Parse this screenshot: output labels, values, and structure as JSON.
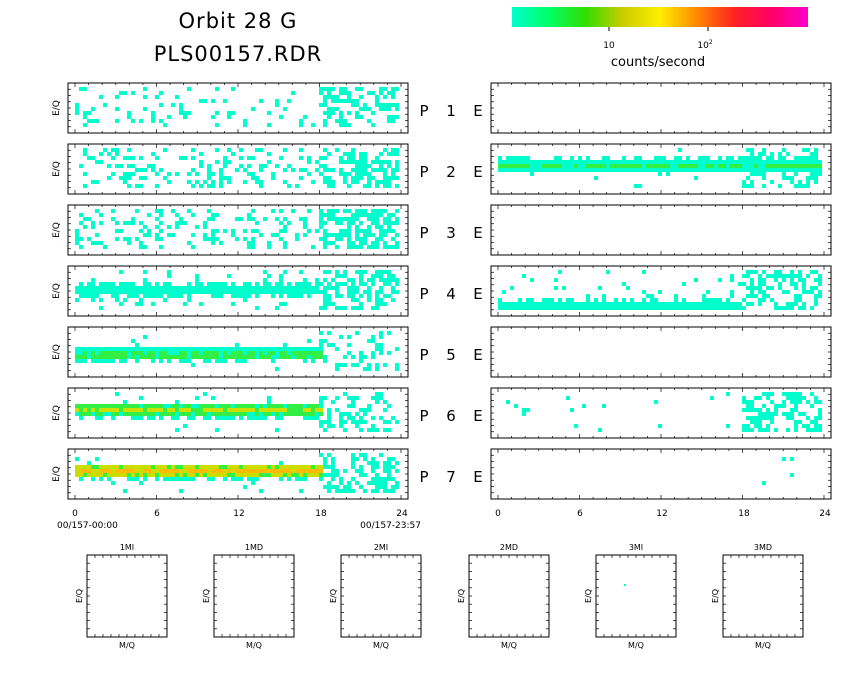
{
  "title": {
    "line1": "Orbit 28 G",
    "line2": "PLS00157.RDR"
  },
  "colorbar": {
    "stops": [
      "#00ffcc",
      "#00ff66",
      "#33dd00",
      "#cccc00",
      "#ffee00",
      "#ff8800",
      "#ff2222",
      "#ff0066",
      "#ff00cc"
    ],
    "tick1": "10",
    "tick2_base": "10",
    "tick2_exp": "2",
    "label": "counts/second"
  },
  "axis_labels": {
    "eq": "E/Q",
    "mq": "M/Q"
  },
  "time_axis": {
    "ticks": [
      "0",
      "6",
      "12",
      "18",
      "24"
    ],
    "start_label": "00/157-00:00",
    "end_label": "00/157-23:57"
  },
  "chart_data": {
    "type": "heatmap",
    "x_range": [
      0,
      24
    ],
    "channels": [
      {
        "p": "P",
        "n": "1",
        "e": "E",
        "left": {
          "density": 0.1,
          "late_density": 0.45,
          "band_y": null,
          "band_level": 0,
          "band_end": 18
        },
        "right": {
          "density": 0.0,
          "late_density": 0.0,
          "band_y": null,
          "band_level": 0,
          "band_end": 24
        }
      },
      {
        "p": "P",
        "n": "2",
        "e": "E",
        "left": {
          "density": 0.22,
          "late_density": 0.55,
          "band_y": null,
          "band_level": 0,
          "band_end": 18
        },
        "right": {
          "density": 0.02,
          "late_density": 0.35,
          "band_y": 0.38,
          "band_level": 1,
          "band_end": 24
        }
      },
      {
        "p": "P",
        "n": "3",
        "e": "E",
        "left": {
          "density": 0.25,
          "late_density": 0.6,
          "band_y": null,
          "band_level": 0,
          "band_end": 18
        },
        "right": {
          "density": 0.002,
          "late_density": 0.0,
          "band_y": null,
          "band_level": 0,
          "band_end": 24
        }
      },
      {
        "p": "P",
        "n": "4",
        "e": "E",
        "left": {
          "density": 0.12,
          "late_density": 0.55,
          "band_y": 0.45,
          "band_level": 0,
          "band_end": 18
        },
        "right": {
          "density": 0.08,
          "late_density": 0.45,
          "band_y": 0.85,
          "band_level": 0,
          "band_end": 18
        }
      },
      {
        "p": "P",
        "n": "5",
        "e": "E",
        "left": {
          "density": 0.04,
          "late_density": 0.25,
          "band_y": 0.52,
          "band_level": 1,
          "band_end": 18.5
        },
        "right": {
          "density": 0.0,
          "late_density": 0.0,
          "band_y": null,
          "band_level": 0,
          "band_end": 24
        }
      },
      {
        "p": "P",
        "n": "6",
        "e": "E",
        "left": {
          "density": 0.03,
          "late_density": 0.35,
          "band_y": 0.42,
          "band_level": 2,
          "band_end": 18.5
        },
        "right": {
          "density": 0.02,
          "late_density": 0.45,
          "band_y": null,
          "band_level": 0,
          "band_end": 24
        }
      },
      {
        "p": "P",
        "n": "7",
        "e": "E",
        "left": {
          "density": 0.03,
          "late_density": 0.45,
          "band_y": 0.4,
          "band_level": 3,
          "band_end": 18.5
        },
        "right": {
          "density": 0.0,
          "late_density": 0.03,
          "band_y": null,
          "band_level": 0,
          "band_end": 24
        }
      }
    ],
    "mass_panels": [
      "1MI",
      "1MD",
      "2MI",
      "2MD",
      "3MI",
      "3MD"
    ]
  }
}
